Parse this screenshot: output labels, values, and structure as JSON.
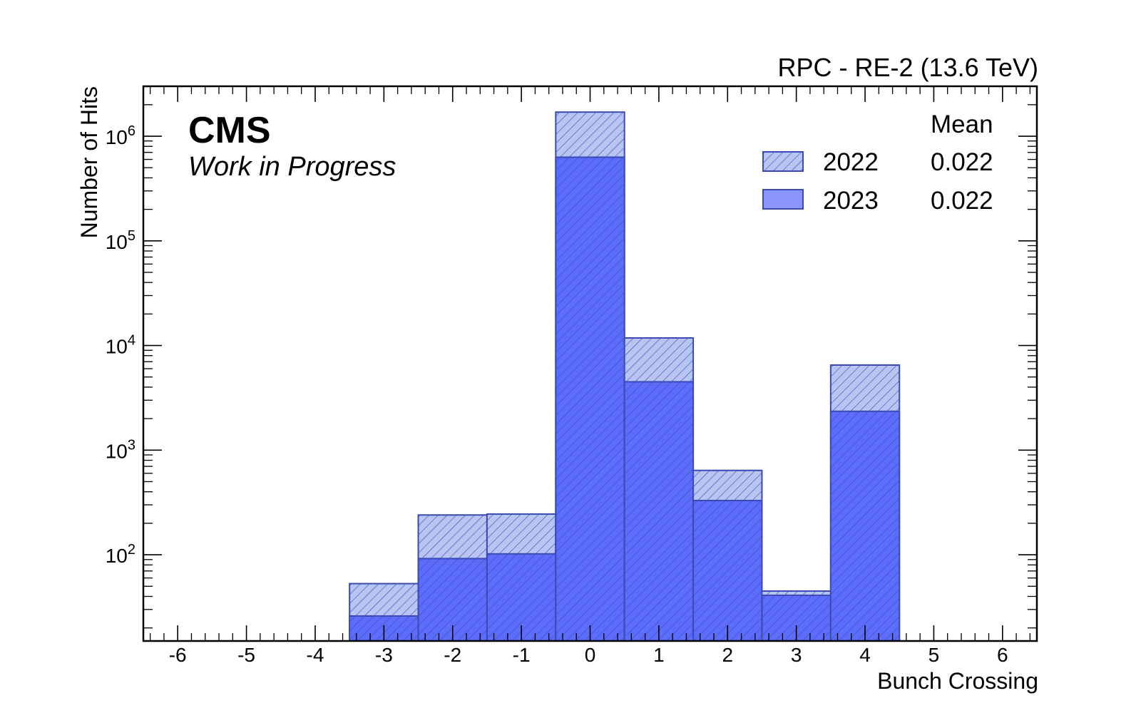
{
  "header": {
    "title_right": "RPC - RE-2 (13.6 TeV)",
    "experiment": "CMS",
    "status": "Work in Progress"
  },
  "legend": {
    "header": "Mean",
    "entries": [
      {
        "name": "2022",
        "mean": "0.022"
      },
      {
        "name": "2023",
        "mean": "0.022"
      }
    ]
  },
  "colors": {
    "hist_2022_fill": "#b8c4f2",
    "hist_2023_fill": "#5d6dfb",
    "outline": "#3a4bb4"
  },
  "chart_data": {
    "type": "bar",
    "xlabel": "Bunch Crossing",
    "ylabel": "Number of Hits",
    "xlim": [
      -6.5,
      6.5
    ],
    "ylim": [
      15,
      3000000
    ],
    "yscale": "log",
    "grid": false,
    "legend_position": "top-right",
    "x_ticks": [
      "-6",
      "-5",
      "-4",
      "-3",
      "-2",
      "-1",
      "0",
      "1",
      "2",
      "3",
      "4",
      "5",
      "6"
    ],
    "y_ticks": [
      {
        "value": 100,
        "base": "10",
        "exp": "2"
      },
      {
        "value": 1000,
        "base": "10",
        "exp": "3"
      },
      {
        "value": 10000,
        "base": "10",
        "exp": "4"
      },
      {
        "value": 100000,
        "base": "10",
        "exp": "5"
      },
      {
        "value": 1000000,
        "base": "10",
        "exp": "6"
      }
    ],
    "categories": [
      -3,
      -2,
      -1,
      0,
      1,
      2,
      3,
      4
    ],
    "series": [
      {
        "name": "2022",
        "values": [
          53,
          240,
          245,
          1700000,
          11800,
          640,
          45,
          6500
        ]
      },
      {
        "name": "2023",
        "values": [
          26,
          92,
          102,
          630000,
          4500,
          330,
          41,
          2350
        ]
      }
    ]
  }
}
